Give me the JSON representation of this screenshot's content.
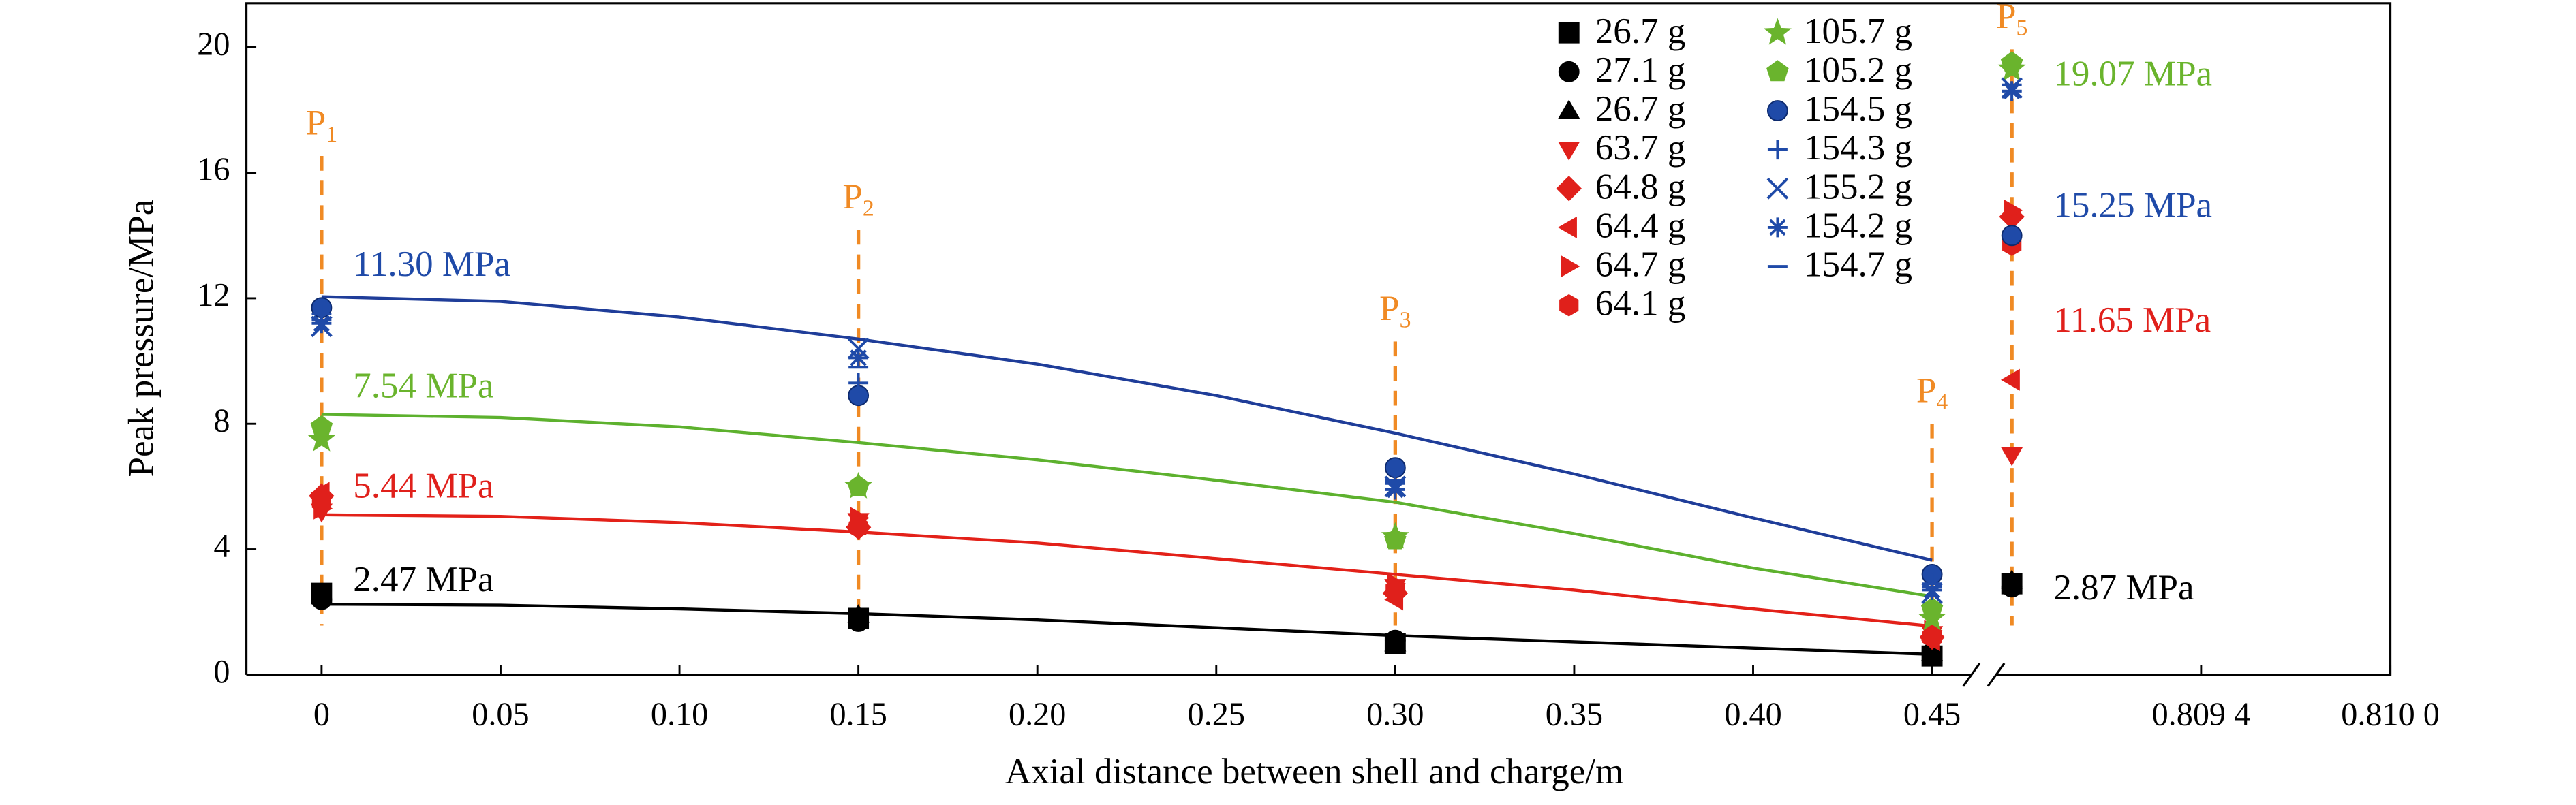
{
  "chart_data": {
    "type": "scatter",
    "xlabel": "Axial distance between shell and charge/m",
    "ylabel": "Peak pressure/MPa",
    "xlim": [
      -0.021,
      0.461
    ],
    "x2lim": [
      0.80875,
      0.81
    ],
    "ylim": [
      0,
      21.4
    ],
    "yticks": [
      0,
      4,
      8,
      12,
      16,
      20
    ],
    "xticks": [
      0,
      0.05,
      {
        "value": 0.1,
        "label": "0.10"
      },
      0.15,
      {
        "value": 0.2,
        "label": "0.20"
      },
      0.25,
      {
        "value": 0.3,
        "label": "0.30"
      },
      0.35,
      {
        "value": 0.4,
        "label": "0.40"
      },
      0.45
    ],
    "x2ticks": [
      {
        "value": 0.8094,
        "label": "0.809 4"
      },
      {
        "value": 0.81,
        "label": "0.810 0"
      }
    ],
    "x": [
      0,
      0.15,
      0.3,
      0.45,
      0.8088
    ],
    "series": [
      {
        "name": "26.7 g",
        "marker": "square",
        "color": "#000000",
        "values": [
          2.6,
          1.8,
          1.0,
          0.6,
          2.9
        ]
      },
      {
        "name": "27.1 g",
        "marker": "circle",
        "color": "#000000",
        "values": [
          2.4,
          1.7,
          1.1,
          0.7,
          2.8
        ]
      },
      {
        "name": "26.7 g",
        "marker": "triangle",
        "color": "#000000",
        "values": [
          2.5,
          1.9,
          1.0,
          0.7,
          3.0
        ]
      },
      {
        "name": "63.7 g",
        "marker": "triangle-down",
        "color": "#e0201b",
        "values": [
          5.2,
          4.9,
          2.8,
          1.3,
          7.0
        ]
      },
      {
        "name": "64.8 g",
        "marker": "diamond",
        "color": "#e0201b",
        "values": [
          5.7,
          4.7,
          2.6,
          1.2,
          14.6
        ]
      },
      {
        "name": "64.4 g",
        "marker": "triangle-left",
        "color": "#e0201b",
        "values": [
          5.8,
          4.8,
          2.4,
          1.1,
          9.4
        ]
      },
      {
        "name": "64.7 g",
        "marker": "triangle-right",
        "color": "#e0201b",
        "values": [
          5.3,
          5.0,
          2.9,
          1.4,
          14.8
        ]
      },
      {
        "name": "64.1 g",
        "marker": "hexagon",
        "color": "#e0201b",
        "values": [
          5.5,
          4.7,
          2.7,
          1.2,
          13.7
        ]
      },
      {
        "name": "105.7 g",
        "marker": "star",
        "color": "#6ab42d",
        "values": [
          7.5,
          6.0,
          4.4,
          1.8,
          19.3
        ]
      },
      {
        "name": "105.2 g",
        "marker": "pentagon",
        "color": "#6ab42d",
        "values": [
          7.9,
          6.0,
          4.3,
          2.1,
          19.5
        ]
      },
      {
        "name": "154.5 g",
        "marker": "sphere",
        "color": "#1f4aa8",
        "values": [
          11.7,
          8.9,
          6.6,
          3.2,
          14.0
        ]
      },
      {
        "name": "154.3 g",
        "marker": "plus",
        "color": "#1f4aa8",
        "values": [
          11.5,
          9.3,
          6.2,
          2.9,
          18.6
        ]
      },
      {
        "name": "155.2 g",
        "marker": "x",
        "color": "#1f4aa8",
        "values": [
          11.1,
          10.4,
          6.0,
          2.6,
          18.7
        ]
      },
      {
        "name": "154.2 g",
        "marker": "asterisk",
        "color": "#1f4aa8",
        "values": [
          11.2,
          10.1,
          5.9,
          2.7,
          18.6
        ]
      },
      {
        "name": "154.7 g",
        "marker": "dash",
        "color": "#1f4aa8",
        "values": [
          11.3,
          9.8,
          6.1,
          2.8,
          18.8
        ]
      }
    ],
    "fit_x": [
      0,
      0.05,
      0.1,
      0.15,
      0.2,
      0.25,
      0.3,
      0.35,
      0.4,
      0.45
    ],
    "fits": [
      {
        "color": "#1f3d99",
        "values": [
          12.05,
          11.9,
          11.4,
          10.7,
          9.9,
          8.9,
          7.7,
          6.4,
          5.0,
          3.65
        ]
      },
      {
        "color": "#5db12e",
        "values": [
          8.3,
          8.2,
          7.9,
          7.4,
          6.85,
          6.2,
          5.5,
          4.5,
          3.4,
          2.5
        ]
      },
      {
        "color": "#e32119",
        "values": [
          5.1,
          5.05,
          4.85,
          4.55,
          4.2,
          3.7,
          3.2,
          2.7,
          2.1,
          1.55
        ]
      },
      {
        "color": "#000000",
        "values": [
          2.25,
          2.22,
          2.1,
          1.95,
          1.75,
          1.5,
          1.25,
          1.05,
          0.85,
          0.65
        ]
      }
    ],
    "position_color": "#f08a24",
    "positions": [
      {
        "main": "P",
        "sub": "1"
      },
      {
        "main": "P",
        "sub": "2"
      },
      {
        "main": "P",
        "sub": "3"
      },
      {
        "main": "P",
        "sub": "4"
      },
      {
        "main": "P",
        "sub": "5"
      }
    ],
    "annotations": [
      {
        "text": "11.30 MPa",
        "color": "#1f4aa8"
      },
      {
        "text": "7.54 MPa",
        "color": "#6ab42d"
      },
      {
        "text": "5.44 MPa",
        "color": "#e0201b"
      },
      {
        "text": "2.47 MPa",
        "color": "#000000"
      },
      {
        "text": "19.07 MPa",
        "color": "#6ab42d"
      },
      {
        "text": "15.25 MPa",
        "color": "#1f4aa8"
      },
      {
        "text": "11.65 MPa",
        "color": "#e0201b"
      },
      {
        "text": "2.87 MPa",
        "color": "#000000"
      }
    ]
  }
}
